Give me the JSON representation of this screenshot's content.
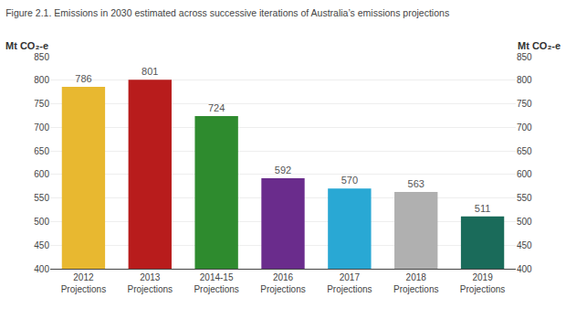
{
  "chart_data": {
    "type": "bar",
    "title": "Figure 2.1. Emissions in 2030 estimated across successive iterations of Australia’s emissions projections",
    "ylabel": "Mt CO₂-e",
    "y2label": "Mt CO₂-e",
    "categories": [
      "2012\nProjections",
      "2013\nProjections",
      "2014-15\nProjections",
      "2016\nProjections",
      "2017\nProjections",
      "2018\nProjections",
      "2019\nProjections"
    ],
    "values": [
      786,
      801,
      724,
      592,
      570,
      563,
      511
    ],
    "colors": [
      "#E8B830",
      "#B81C1C",
      "#2E8B2E",
      "#6A2C8C",
      "#29A8D4",
      "#B0B0B0",
      "#1A6B5A"
    ],
    "ylim": [
      400,
      850
    ],
    "yticks": [
      400,
      450,
      500,
      550,
      600,
      650,
      700,
      750,
      800,
      850
    ],
    "y2lim": [
      400,
      850
    ],
    "y2ticks": [
      400,
      450,
      500,
      550,
      600,
      650,
      700,
      750,
      800,
      850
    ],
    "grid": true,
    "data_labels": true
  }
}
